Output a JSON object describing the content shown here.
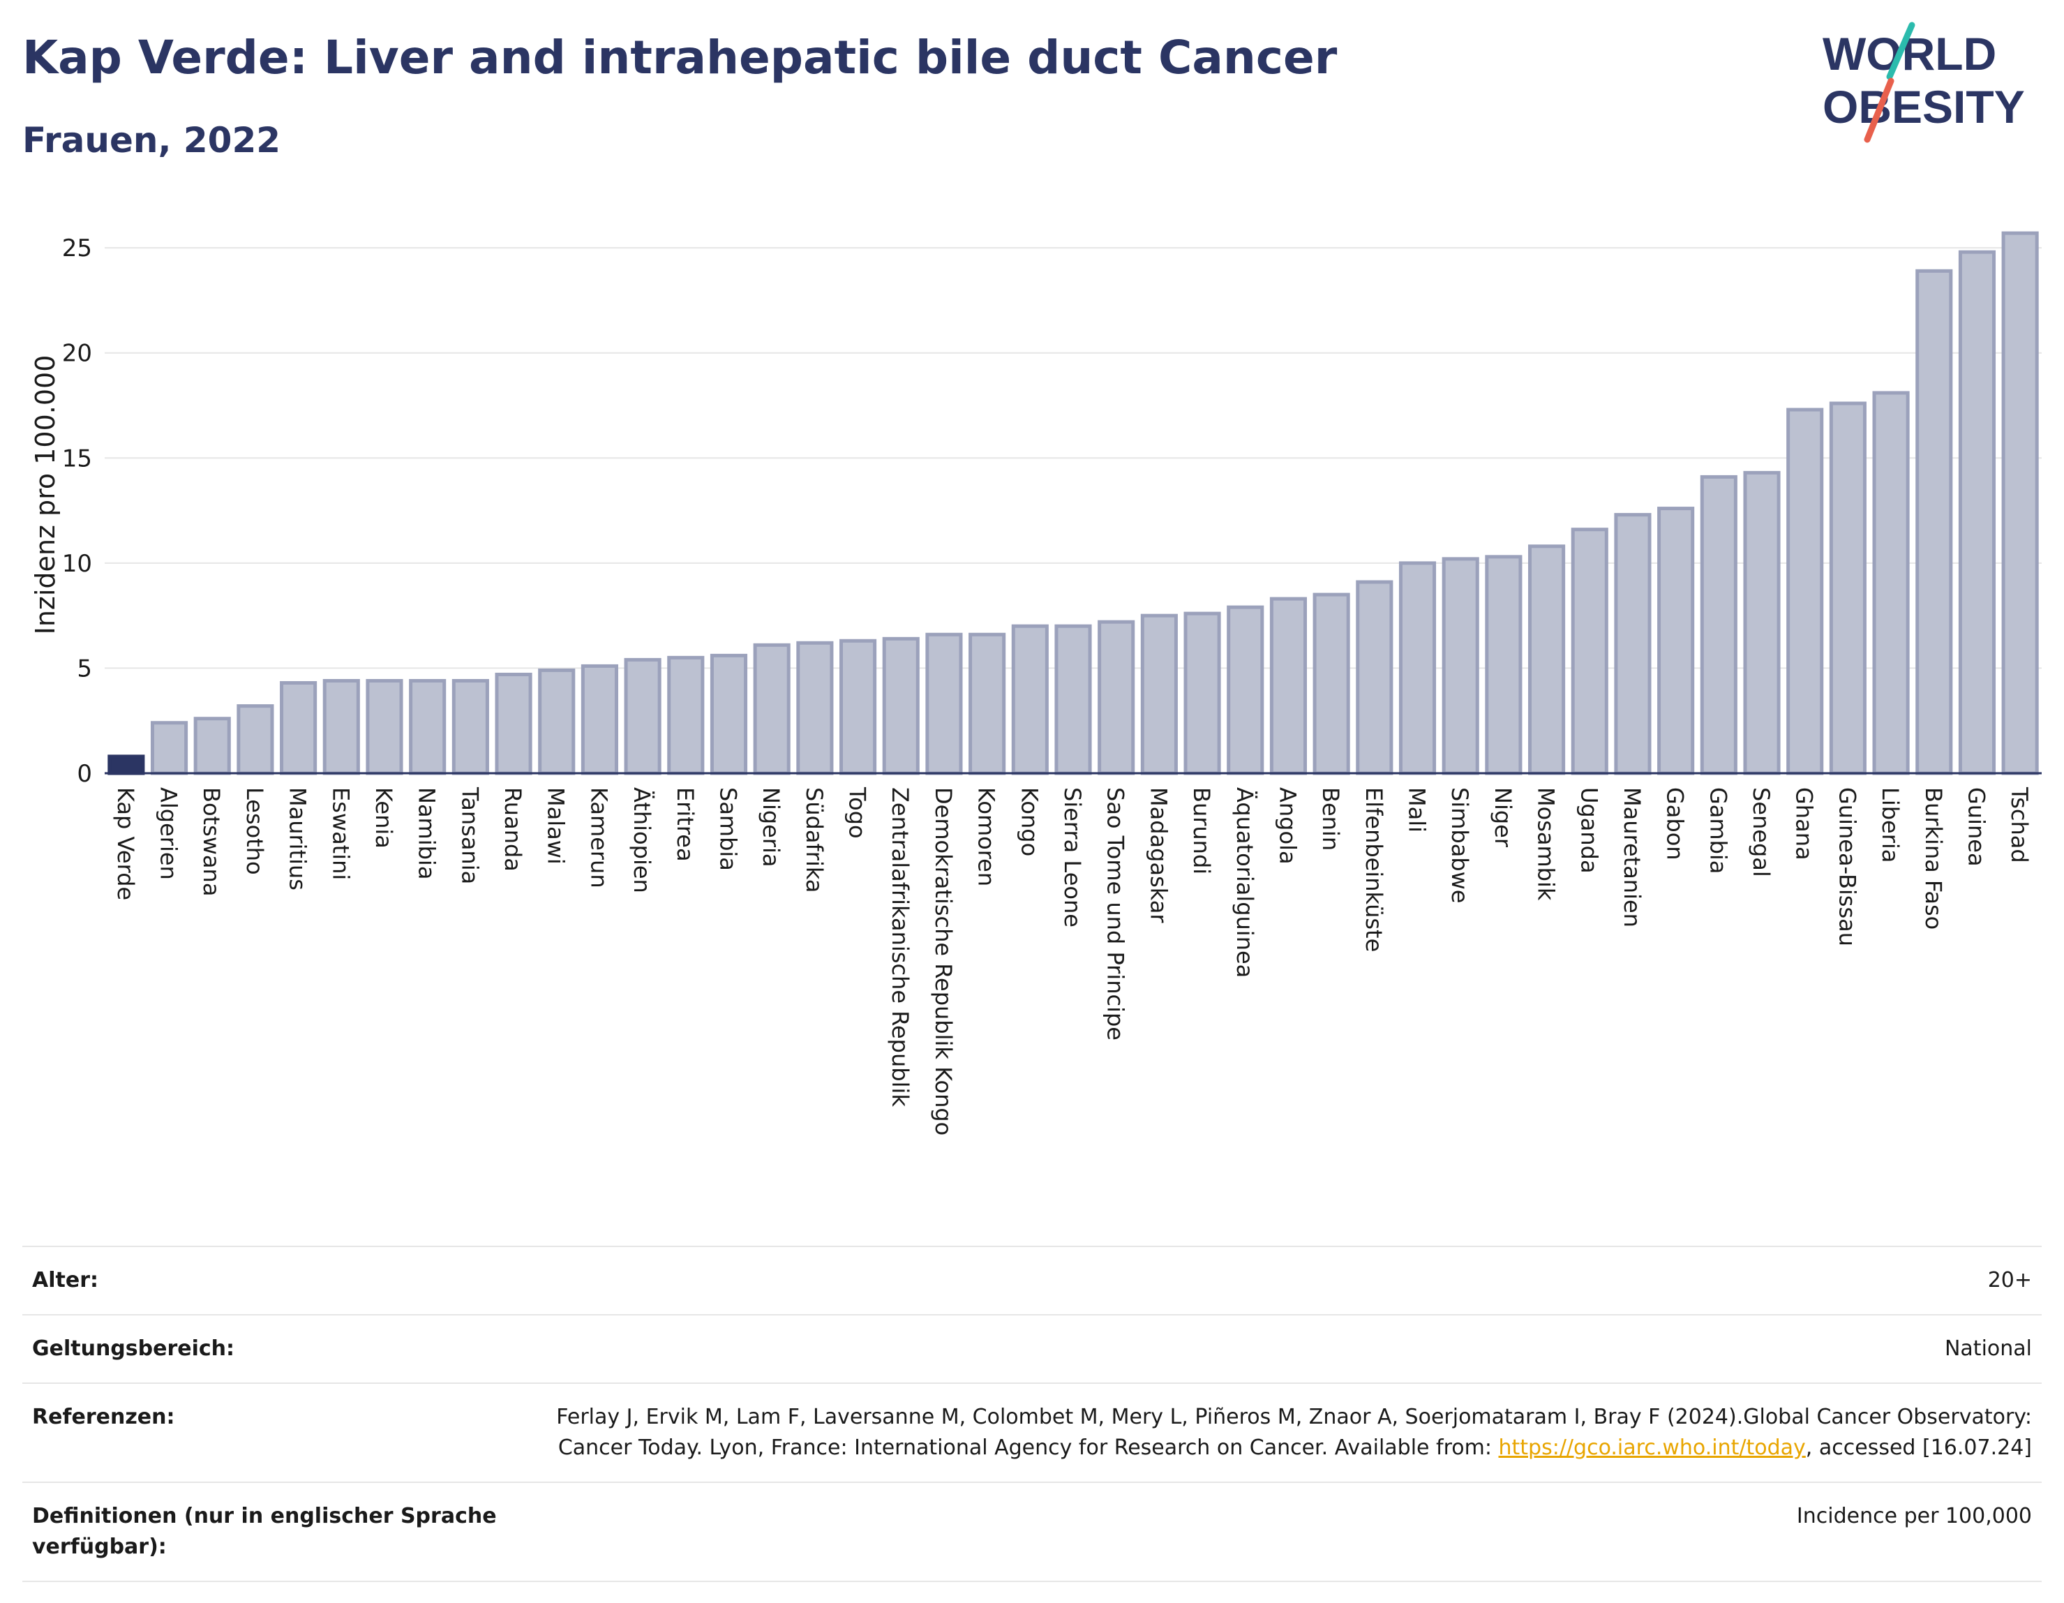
{
  "title": "Kap Verde: Liver and intrahepatic bile duct Cancer",
  "subtitle": "Frauen, 2022",
  "logo": {
    "line1": "WORLD",
    "line2": "OBESITY",
    "icon": "world-obesity-logo"
  },
  "colors": {
    "highlight": "#2b3563",
    "bar_fill": "#bcc1d1",
    "bar_stroke": "#9ba1bb",
    "title": "#2b3563",
    "link": "#e8a500"
  },
  "chart_data": {
    "type": "bar",
    "ylabel": "Inzidenz pro 100.000",
    "xlabel": "",
    "ylim": [
      0,
      26.5
    ],
    "yticks": [
      0,
      5,
      10,
      15,
      20,
      25
    ],
    "grid": true,
    "highlight": "Kap Verde",
    "categories": [
      "Kap Verde",
      "Algerien",
      "Botswana",
      "Lesotho",
      "Mauritius",
      "Eswatini",
      "Kenia",
      "Namibia",
      "Tansania",
      "Ruanda",
      "Malawi",
      "Kamerun",
      "Äthiopien",
      "Eritrea",
      "Sambia",
      "Nigeria",
      "Südafrika",
      "Togo",
      "Zentralafrikanische Republik",
      "Demokratische Republik Kongo",
      "Komoren",
      "Kongo",
      "Sierra Leone",
      "Sao Tome und Principe",
      "Madagaskar",
      "Burundi",
      "Äquatorialguinea",
      "Angola",
      "Benin",
      "Elfenbeinküste",
      "Mali",
      "Simbabwe",
      "Niger",
      "Mosambik",
      "Uganda",
      "Mauretanien",
      "Gabon",
      "Gambia",
      "Senegal",
      "Ghana",
      "Guinea-Bissau",
      "Liberia",
      "Burkina Faso",
      "Guinea",
      "Tschad"
    ],
    "values": [
      0.8,
      2.4,
      2.6,
      3.2,
      4.3,
      4.4,
      4.4,
      4.4,
      4.4,
      4.7,
      4.9,
      5.1,
      5.4,
      5.5,
      5.6,
      6.1,
      6.2,
      6.3,
      6.4,
      6.6,
      6.6,
      7.0,
      7.0,
      7.2,
      7.5,
      7.6,
      7.9,
      8.3,
      8.5,
      9.1,
      10.0,
      10.2,
      10.3,
      10.8,
      11.6,
      12.3,
      12.6,
      14.1,
      14.3,
      17.3,
      17.6,
      18.1,
      23.9,
      24.8,
      25.7
    ]
  },
  "meta": [
    {
      "label": "Alter:",
      "value": "20+"
    },
    {
      "label": "Geltungsbereich:",
      "value": "National"
    },
    {
      "label": "Referenzen:",
      "value_pre": "Ferlay J, Ervik M, Lam F, Laversanne M, Colombet M, Mery L, Piñeros M, Znaor A, Soerjomataram I, Bray F (2024).Global Cancer Observatory: Cancer Today. Lyon, France: International Agency for Research on Cancer. Available from: ",
      "link": "https://gco.iarc.who.int/today",
      "value_post": ", accessed [16.07.24]"
    },
    {
      "label": "Definitionen (nur in englischer Sprache verfügbar):",
      "value": "Incidence per 100,000"
    }
  ]
}
